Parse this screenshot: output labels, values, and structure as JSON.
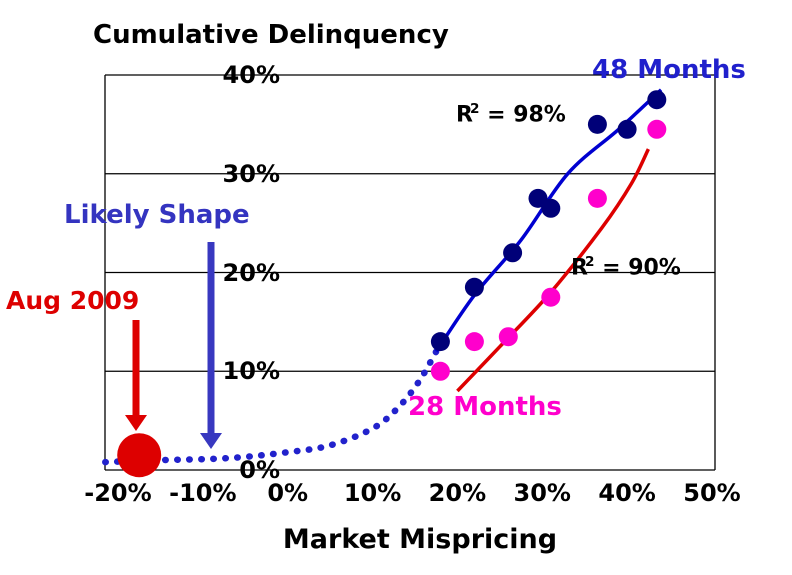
{
  "chart_data": {
    "type": "scatter",
    "title": "Cumulative Delinquency",
    "xlabel": "Market Mispricing",
    "ylabel": "",
    "xlim": [
      -21.5,
      50.5
    ],
    "ylim": [
      0,
      40
    ],
    "grid": "horizontal",
    "x_ticks": [
      {
        "label": "-20%",
        "value": -20
      },
      {
        "label": "-10%",
        "value": -10
      },
      {
        "label": "0%",
        "value": 0
      },
      {
        "label": "10%",
        "value": 10
      },
      {
        "label": "20%",
        "value": 20
      },
      {
        "label": "30%",
        "value": 30
      },
      {
        "label": "40%",
        "value": 40
      },
      {
        "label": "50%",
        "value": 50
      }
    ],
    "y_ticks": [
      {
        "label": "0%",
        "value": 0
      },
      {
        "label": "10%",
        "value": 10
      },
      {
        "label": "20%",
        "value": 20
      },
      {
        "label": "30%",
        "value": 30
      },
      {
        "label": "40%",
        "value": 40
      }
    ],
    "series": [
      {
        "name": "48 Months",
        "marker_color": "#000078",
        "trend_color": "#0000D0",
        "r_squared": "98%",
        "points": [
          [
            18,
            13
          ],
          [
            22,
            18.5
          ],
          [
            26.5,
            22
          ],
          [
            29.5,
            27.5
          ],
          [
            31,
            26.5
          ],
          [
            36.5,
            35
          ],
          [
            40,
            34.5
          ],
          [
            43.5,
            37.5
          ]
        ],
        "trend": [
          [
            17.5,
            12
          ],
          [
            22,
            17.7
          ],
          [
            27.5,
            23.3
          ],
          [
            33,
            30
          ],
          [
            39,
            34.5
          ],
          [
            44,
            38.5
          ]
        ]
      },
      {
        "name": "28 Months",
        "marker_color": "#FF00CC",
        "trend_color": "#DD0000",
        "r_squared": "90%",
        "points": [
          [
            18,
            10
          ],
          [
            22,
            13
          ],
          [
            26,
            13.5
          ],
          [
            31,
            17.5
          ],
          [
            36.5,
            27.5
          ],
          [
            43.5,
            34.5
          ]
        ],
        "trend": [
          [
            20,
            8
          ],
          [
            25,
            12.5
          ],
          [
            31,
            18
          ],
          [
            37,
            24.5
          ],
          [
            40.5,
            29
          ],
          [
            42.5,
            32.5
          ]
        ]
      }
    ],
    "projection": {
      "name": "Likely Shape",
      "style": "dotted",
      "color": "#2222CC",
      "points": [
        [
          -21.5,
          0.8
        ],
        [
          -15,
          1
        ],
        [
          -7,
          1.2
        ],
        [
          0,
          1.8
        ],
        [
          5,
          2.5
        ],
        [
          10,
          4.2
        ],
        [
          13,
          6.3
        ],
        [
          15.5,
          9
        ],
        [
          17.5,
          12
        ]
      ]
    },
    "event_marker": {
      "label": "Aug 2009",
      "color": "#DD0000",
      "point": [
        -17.5,
        1.5
      ]
    }
  },
  "annotations": {
    "label_48": "48 Months",
    "label_28": "28 Months",
    "r2_48": {
      "base": "R",
      "sup": "2",
      "rest": " = 98%"
    },
    "r2_28": {
      "base": "R",
      "sup": "2",
      "rest": " = 90%"
    },
    "likely_shape": "Likely Shape",
    "aug2009": "Aug 2009"
  },
  "colors": {
    "label_48_text": "#2020CC",
    "label_28_text": "#FF00CC",
    "likely_shape_text": "#3434C0",
    "likely_shape_arrow": "#3838C0",
    "aug_text": "#DD0000",
    "aug_arrow": "#DD0000",
    "r2_text": "#000000",
    "grid": "#000000"
  }
}
